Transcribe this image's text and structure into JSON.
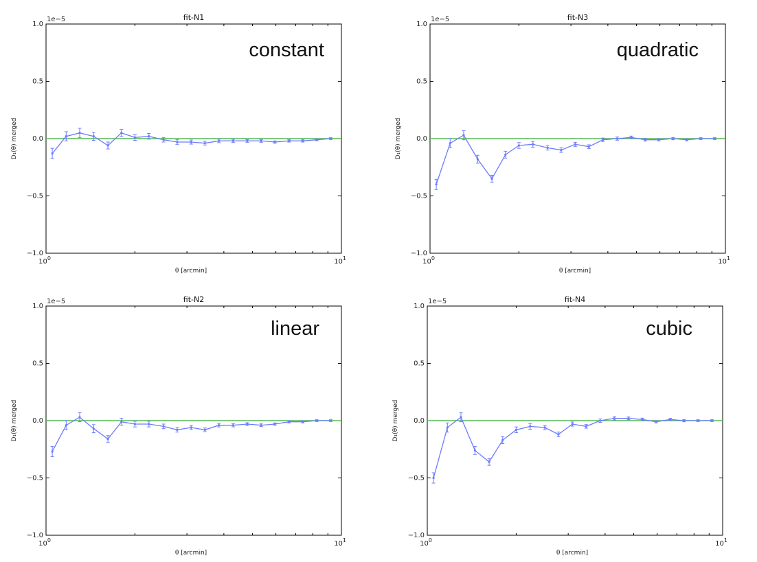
{
  "colors": {
    "data_line": "#6b7bff",
    "zero_line": "#55b855",
    "frame": "#000000"
  },
  "chart_data": [
    {
      "type": "line",
      "title": "fit-N1",
      "annotation": "constant",
      "xlabel": "θ [arcmin]",
      "ylabel": "D₁(θ) merged",
      "scale_label": "1e−5",
      "xscale": "log",
      "xlim": [
        1,
        10
      ],
      "ylim": [
        -1.0,
        1.0
      ],
      "xticks": [
        {
          "value": 1,
          "base": "10",
          "exp": "0"
        },
        {
          "value": 10,
          "base": "10",
          "exp": "1"
        }
      ],
      "yticks": [
        {
          "value": 1.0,
          "label": "1.0"
        },
        {
          "value": 0.5,
          "label": "0.5"
        },
        {
          "value": 0.0,
          "label": "0.0"
        },
        {
          "value": -0.5,
          "label": "−0.5"
        },
        {
          "value": -1.0,
          "label": "−1.0"
        }
      ],
      "x": [
        1.05,
        1.17,
        1.3,
        1.45,
        1.62,
        1.8,
        2.0,
        2.23,
        2.5,
        2.78,
        3.1,
        3.45,
        3.85,
        4.3,
        4.8,
        5.35,
        5.95,
        6.65,
        7.4,
        8.25,
        9.2
      ],
      "y": [
        -0.13,
        0.02,
        0.05,
        0.02,
        -0.06,
        0.05,
        0.01,
        0.02,
        -0.01,
        -0.03,
        -0.03,
        -0.04,
        -0.02,
        -0.02,
        -0.02,
        -0.02,
        -0.03,
        -0.02,
        -0.02,
        -0.01,
        0.0
      ],
      "yerr": [
        0.045,
        0.04,
        0.04,
        0.035,
        0.03,
        0.03,
        0.025,
        0.025,
        0.02,
        0.02,
        0.018,
        0.016,
        0.015,
        0.014,
        0.012,
        0.012,
        0.01,
        0.01,
        0.01,
        0.008,
        0.008
      ],
      "reference_line": 0.0
    },
    {
      "type": "line",
      "title": "fit-N3",
      "annotation": "quadratic",
      "xlabel": "θ [arcmin]",
      "ylabel": "D₁(θ) merged",
      "scale_label": "1e−5",
      "xscale": "log",
      "xlim": [
        1,
        10
      ],
      "ylim": [
        -1.0,
        1.0
      ],
      "xticks": [
        {
          "value": 1,
          "base": "10",
          "exp": "0"
        },
        {
          "value": 10,
          "base": "10",
          "exp": "1"
        }
      ],
      "yticks": [
        {
          "value": 1.0,
          "label": "1.0"
        },
        {
          "value": 0.5,
          "label": "0.5"
        },
        {
          "value": 0.0,
          "label": "0.0"
        },
        {
          "value": -0.5,
          "label": "−0.5"
        },
        {
          "value": -1.0,
          "label": "−1.0"
        }
      ],
      "x": [
        1.05,
        1.17,
        1.3,
        1.45,
        1.62,
        1.8,
        2.0,
        2.23,
        2.5,
        2.78,
        3.1,
        3.45,
        3.85,
        4.3,
        4.8,
        5.35,
        5.95,
        6.65,
        7.4,
        8.25,
        9.2
      ],
      "y": [
        -0.4,
        -0.04,
        0.03,
        -0.18,
        -0.35,
        -0.14,
        -0.06,
        -0.05,
        -0.08,
        -0.1,
        -0.05,
        -0.07,
        -0.01,
        0.0,
        0.01,
        -0.01,
        -0.01,
        0.0,
        -0.01,
        0.0,
        0.0
      ],
      "yerr": [
        0.045,
        0.04,
        0.04,
        0.035,
        0.03,
        0.03,
        0.025,
        0.025,
        0.02,
        0.02,
        0.018,
        0.016,
        0.015,
        0.014,
        0.012,
        0.012,
        0.01,
        0.01,
        0.01,
        0.008,
        0.008
      ],
      "reference_line": 0.0
    },
    {
      "type": "line",
      "title": "fit-N2",
      "annotation": "linear",
      "xlabel": "θ [arcmin]",
      "ylabel": "D₁(θ) merged",
      "scale_label": "1e−5",
      "xscale": "log",
      "xlim": [
        1,
        10
      ],
      "ylim": [
        -1.0,
        1.0
      ],
      "xticks": [
        {
          "value": 1,
          "base": "10",
          "exp": "0"
        },
        {
          "value": 10,
          "base": "10",
          "exp": "1"
        }
      ],
      "yticks": [
        {
          "value": 1.0,
          "label": "1.0"
        },
        {
          "value": 0.5,
          "label": "0.5"
        },
        {
          "value": 0.0,
          "label": "0.0"
        },
        {
          "value": -0.5,
          "label": "−0.5"
        },
        {
          "value": -1.0,
          "label": "−1.0"
        }
      ],
      "x": [
        1.05,
        1.17,
        1.3,
        1.45,
        1.62,
        1.8,
        2.0,
        2.23,
        2.5,
        2.78,
        3.1,
        3.45,
        3.85,
        4.3,
        4.8,
        5.35,
        5.95,
        6.65,
        7.4,
        8.25,
        9.2
      ],
      "y": [
        -0.27,
        -0.04,
        0.03,
        -0.07,
        -0.16,
        -0.01,
        -0.03,
        -0.03,
        -0.05,
        -0.08,
        -0.06,
        -0.08,
        -0.04,
        -0.04,
        -0.03,
        -0.04,
        -0.03,
        -0.01,
        -0.01,
        0.0,
        0.0
      ],
      "yerr": [
        0.045,
        0.04,
        0.04,
        0.035,
        0.03,
        0.03,
        0.025,
        0.025,
        0.02,
        0.02,
        0.018,
        0.016,
        0.015,
        0.014,
        0.012,
        0.012,
        0.01,
        0.01,
        0.01,
        0.008,
        0.008
      ],
      "reference_line": 0.0
    },
    {
      "type": "line",
      "title": "fit-N4",
      "annotation": "cubic",
      "xlabel": "θ [arcmin]",
      "ylabel": "D₁(θ) merged",
      "scale_label": "1e−5",
      "xscale": "log",
      "xlim": [
        1,
        10
      ],
      "ylim": [
        -1.0,
        1.0
      ],
      "xticks": [
        {
          "value": 1,
          "base": "10",
          "exp": "0"
        },
        {
          "value": 10,
          "base": "10",
          "exp": "1"
        }
      ],
      "yticks": [
        {
          "value": 1.0,
          "label": "1.0"
        },
        {
          "value": 0.5,
          "label": "0.5"
        },
        {
          "value": 0.0,
          "label": "0.0"
        },
        {
          "value": -0.5,
          "label": "−0.5"
        },
        {
          "value": -1.0,
          "label": "−1.0"
        }
      ],
      "x": [
        1.05,
        1.17,
        1.3,
        1.45,
        1.62,
        1.8,
        2.0,
        2.23,
        2.5,
        2.78,
        3.1,
        3.45,
        3.85,
        4.3,
        4.8,
        5.35,
        5.95,
        6.65,
        7.4,
        8.25,
        9.2
      ],
      "y": [
        -0.5,
        -0.06,
        0.03,
        -0.26,
        -0.36,
        -0.17,
        -0.08,
        -0.05,
        -0.06,
        -0.12,
        -0.03,
        -0.05,
        0.0,
        0.02,
        0.02,
        0.01,
        -0.01,
        0.01,
        0.0,
        0.0,
        0.0
      ],
      "yerr": [
        0.045,
        0.04,
        0.04,
        0.035,
        0.03,
        0.03,
        0.025,
        0.025,
        0.02,
        0.02,
        0.018,
        0.016,
        0.015,
        0.014,
        0.012,
        0.012,
        0.01,
        0.01,
        0.01,
        0.008,
        0.008
      ],
      "reference_line": 0.0
    }
  ]
}
